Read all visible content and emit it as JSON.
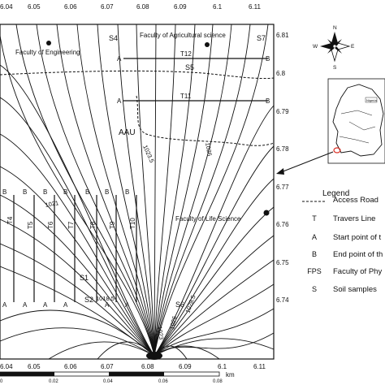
{
  "map": {
    "top_ticks": [
      "6.04",
      "6.05",
      "6.06",
      "6.07",
      "6.08",
      "6.09",
      "6.1",
      "6.11"
    ],
    "bottom_ticks": [
      "6.04",
      "6.05",
      "6.06",
      "6.07",
      "6.08",
      "6.09",
      "6.1",
      "6.11"
    ],
    "right_ticks": [
      "6.81",
      "6.8",
      "6.79",
      "6.78",
      "6.77",
      "6.76",
      "6.75",
      "6.74"
    ],
    "places": {
      "engineering": "Faculty of Engineering",
      "agricultural": "Faculty of Agricultural science",
      "life_science": "Faculty of Life Science",
      "campus": "AAU"
    },
    "contour_labels": [
      "1023.5",
      "1026",
      "1028.5",
      "1026",
      "1023",
      "1021",
      "1018.5"
    ],
    "soil_samples": [
      "S1",
      "S2",
      "S4",
      "S5",
      "S6",
      "S7"
    ],
    "traverses": [
      "T11",
      "T12",
      "T4",
      "T5",
      "T6",
      "T7",
      "T8",
      "T9",
      "T10"
    ],
    "endpoint_marks": {
      "a": "A",
      "b": "B"
    }
  },
  "scale_bar": {
    "ticks": [
      "0",
      "0.02",
      "0.04",
      "0.06",
      "0.08"
    ],
    "unit": "km"
  },
  "compass": {
    "n": "N",
    "e": "E",
    "s": "S",
    "w": "W"
  },
  "inset": {
    "label": "Nigeria"
  },
  "legend": {
    "title": "Legend",
    "items": [
      {
        "symbol": "",
        "label": "Access Road"
      },
      {
        "symbol": "T",
        "label": "Travers Line"
      },
      {
        "symbol": "A",
        "label": "Start point of t"
      },
      {
        "symbol": "B",
        "label": "End point of th"
      },
      {
        "symbol": "FPS",
        "label": "Faculty of Phy"
      },
      {
        "symbol": "S",
        "label": "Soil samples"
      }
    ]
  },
  "colors": {
    "line": "#111111",
    "inset_marker": "#d93025",
    "background": "#ffffff"
  }
}
